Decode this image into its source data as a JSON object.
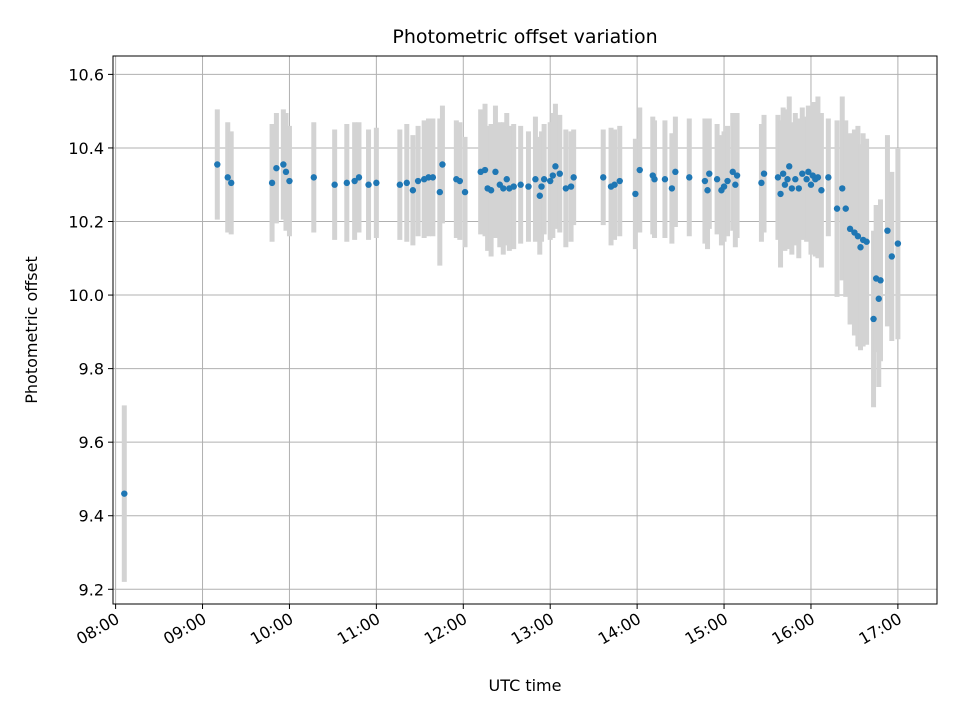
{
  "chart_data": {
    "type": "scatter",
    "title": "Photometric offset variation",
    "xlabel": "UTC time",
    "ylabel": "Photometric offset",
    "x_unit": "hours (UTC)",
    "xlim": [
      7.97,
      17.45
    ],
    "ylim": [
      9.16,
      10.65
    ],
    "grid": true,
    "colors": {
      "point": "#1f77b4",
      "errorbar": "#d3d3d3",
      "grid": "#b0b0b0",
      "axis": "#000000"
    },
    "x_ticks": [
      {
        "value": 8,
        "label": "08:00"
      },
      {
        "value": 9,
        "label": "09:00"
      },
      {
        "value": 10,
        "label": "10:00"
      },
      {
        "value": 11,
        "label": "11:00"
      },
      {
        "value": 12,
        "label": "12:00"
      },
      {
        "value": 13,
        "label": "13:00"
      },
      {
        "value": 14,
        "label": "14:00"
      },
      {
        "value": 15,
        "label": "15:00"
      },
      {
        "value": 16,
        "label": "16:00"
      },
      {
        "value": 17,
        "label": "17:00"
      }
    ],
    "y_ticks": [
      {
        "value": 9.2,
        "label": "9.2"
      },
      {
        "value": 9.4,
        "label": "9.4"
      },
      {
        "value": 9.6,
        "label": "9.6"
      },
      {
        "value": 9.8,
        "label": "9.8"
      },
      {
        "value": 10.0,
        "label": "10.0"
      },
      {
        "value": 10.2,
        "label": "10.2"
      },
      {
        "value": 10.4,
        "label": "10.4"
      },
      {
        "value": 10.6,
        "label": "10.6"
      }
    ],
    "series": [
      {
        "x": [
          8.1,
          9.17,
          9.29,
          9.33,
          9.8,
          9.85,
          9.93,
          9.96,
          10.0,
          10.28,
          10.52,
          10.66,
          10.75,
          10.8,
          10.91,
          11.0,
          11.27,
          11.35,
          11.42,
          11.48,
          11.55,
          11.6,
          11.65,
          11.73,
          11.76,
          11.92,
          11.96,
          12.02,
          12.2,
          12.25,
          12.28,
          12.32,
          12.37,
          12.42,
          12.46,
          12.5,
          12.53,
          12.58,
          12.66,
          12.75,
          12.83,
          12.88,
          12.9,
          12.93,
          13.0,
          13.03,
          13.06,
          13.11,
          13.18,
          13.24,
          13.27,
          13.61,
          13.7,
          13.74,
          13.8,
          13.98,
          14.03,
          14.18,
          14.2,
          14.32,
          14.4,
          14.44,
          14.6,
          14.78,
          14.81,
          14.83,
          14.92,
          14.97,
          15.0,
          15.04,
          15.1,
          15.13,
          15.15,
          15.43,
          15.46,
          15.62,
          15.65,
          15.68,
          15.7,
          15.73,
          15.75,
          15.78,
          15.82,
          15.86,
          15.9,
          15.95,
          15.97,
          16.0,
          16.02,
          16.05,
          16.08,
          16.12,
          16.2,
          16.3,
          16.36,
          16.4,
          16.45,
          16.5,
          16.54,
          16.57,
          16.6,
          16.64,
          16.72,
          16.75,
          16.78,
          16.8,
          16.88,
          16.93,
          17.0
        ],
        "y": [
          9.46,
          10.355,
          10.32,
          10.305,
          10.305,
          10.345,
          10.355,
          10.335,
          10.31,
          10.32,
          10.3,
          10.305,
          10.31,
          10.32,
          10.3,
          10.305,
          10.3,
          10.305,
          10.285,
          10.31,
          10.315,
          10.32,
          10.32,
          10.28,
          10.355,
          10.315,
          10.31,
          10.28,
          10.335,
          10.34,
          10.29,
          10.285,
          10.335,
          10.3,
          10.29,
          10.315,
          10.29,
          10.295,
          10.3,
          10.295,
          10.315,
          10.27,
          10.295,
          10.315,
          10.31,
          10.325,
          10.35,
          10.33,
          10.29,
          10.295,
          10.32,
          10.32,
          10.295,
          10.3,
          10.31,
          10.275,
          10.34,
          10.325,
          10.315,
          10.315,
          10.29,
          10.335,
          10.32,
          10.31,
          10.285,
          10.33,
          10.315,
          10.285,
          10.295,
          10.31,
          10.335,
          10.3,
          10.325,
          10.305,
          10.33,
          10.32,
          10.275,
          10.33,
          10.3,
          10.315,
          10.35,
          10.29,
          10.315,
          10.29,
          10.33,
          10.315,
          10.335,
          10.3,
          10.325,
          10.315,
          10.32,
          10.285,
          10.32,
          10.235,
          10.29,
          10.235,
          10.18,
          10.17,
          10.16,
          10.13,
          10.15,
          10.145,
          9.935,
          10.045,
          9.99,
          10.04,
          10.175,
          10.105,
          10.14
        ],
        "yerr": [
          0.24,
          0.15,
          0.15,
          0.14,
          0.16,
          0.15,
          0.15,
          0.16,
          0.15,
          0.15,
          0.15,
          0.16,
          0.16,
          0.15,
          0.15,
          0.15,
          0.15,
          0.16,
          0.15,
          0.15,
          0.16,
          0.16,
          0.16,
          0.2,
          0.16,
          0.16,
          0.16,
          0.15,
          0.17,
          0.18,
          0.17,
          0.18,
          0.18,
          0.17,
          0.18,
          0.18,
          0.17,
          0.17,
          0.16,
          0.15,
          0.17,
          0.16,
          0.15,
          0.15,
          0.16,
          0.17,
          0.17,
          0.16,
          0.16,
          0.15,
          0.13,
          0.13,
          0.16,
          0.15,
          0.15,
          0.15,
          0.17,
          0.16,
          0.16,
          0.16,
          0.15,
          0.15,
          0.16,
          0.17,
          0.16,
          0.15,
          0.15,
          0.15,
          0.15,
          0.15,
          0.16,
          0.17,
          0.17,
          0.16,
          0.16,
          0.17,
          0.2,
          0.18,
          0.18,
          0.19,
          0.19,
          0.18,
          0.18,
          0.19,
          0.18,
          0.17,
          0.18,
          0.19,
          0.2,
          0.21,
          0.22,
          0.21,
          0.16,
          0.24,
          0.25,
          0.24,
          0.26,
          0.28,
          0.3,
          0.28,
          0.29,
          0.28,
          0.24,
          0.2,
          0.24,
          0.22,
          0.26,
          0.23,
          0.26
        ]
      }
    ]
  }
}
